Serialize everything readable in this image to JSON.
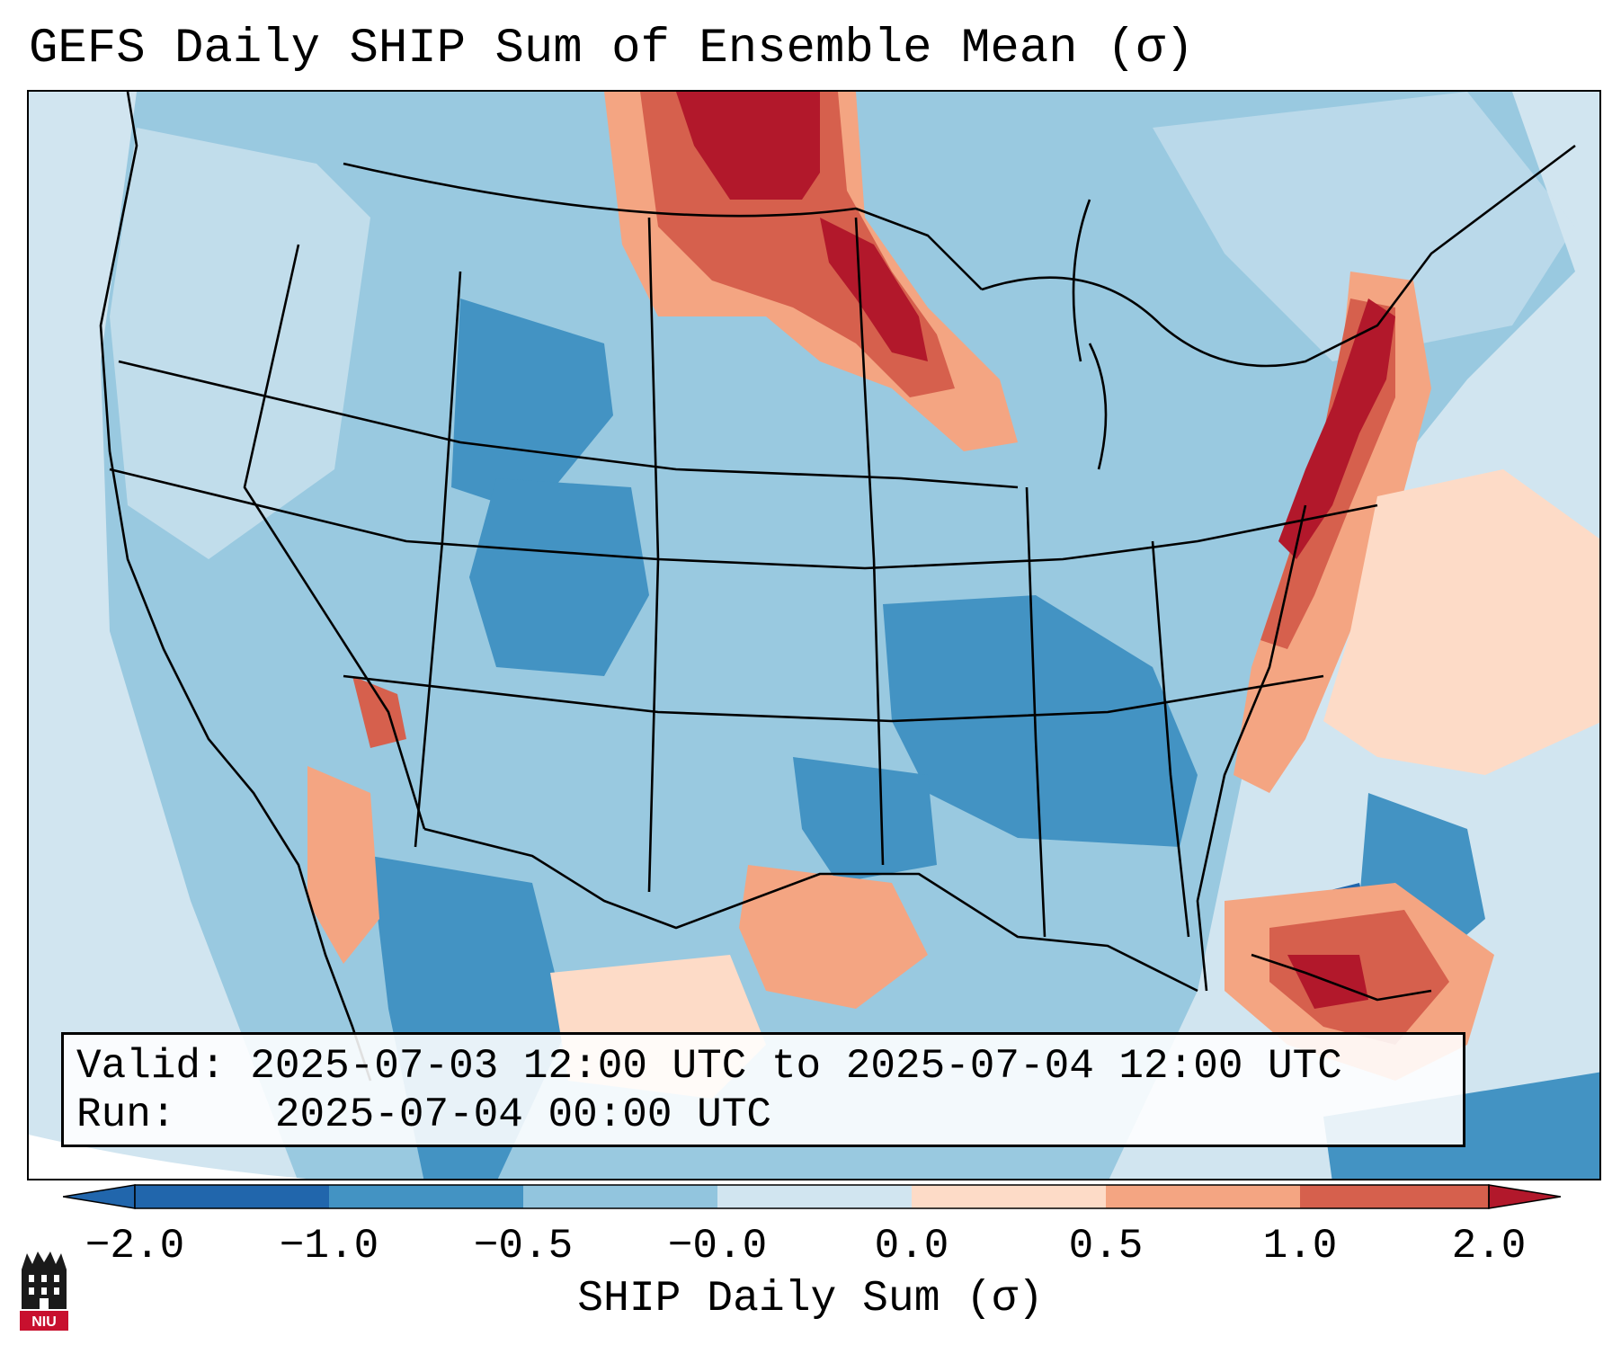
{
  "title": "GEFS Daily SHIP Sum of Ensemble Mean (σ)",
  "info": {
    "valid_label": "Valid:",
    "valid_value": "2025-07-03 12:00 UTC to 2025-07-04 12:00 UTC",
    "run_label": "Run:",
    "run_value": "2025-07-04 00:00 UTC"
  },
  "colorbar": {
    "label": "SHIP Daily Sum (σ)",
    "ticks": [
      "−2.0",
      "−1.0",
      "−0.5",
      "−0.0",
      "0.0",
      "0.5",
      "1.0",
      "2.0"
    ],
    "colors": [
      "#2166ac",
      "#4393c3",
      "#92c5de",
      "#d1e5f0",
      "#fddbc7",
      "#f4a582",
      "#d6604d",
      "#b2182b"
    ]
  },
  "logo": {
    "text": "NIU"
  },
  "icons": [
    "niu-logo-icon"
  ]
}
